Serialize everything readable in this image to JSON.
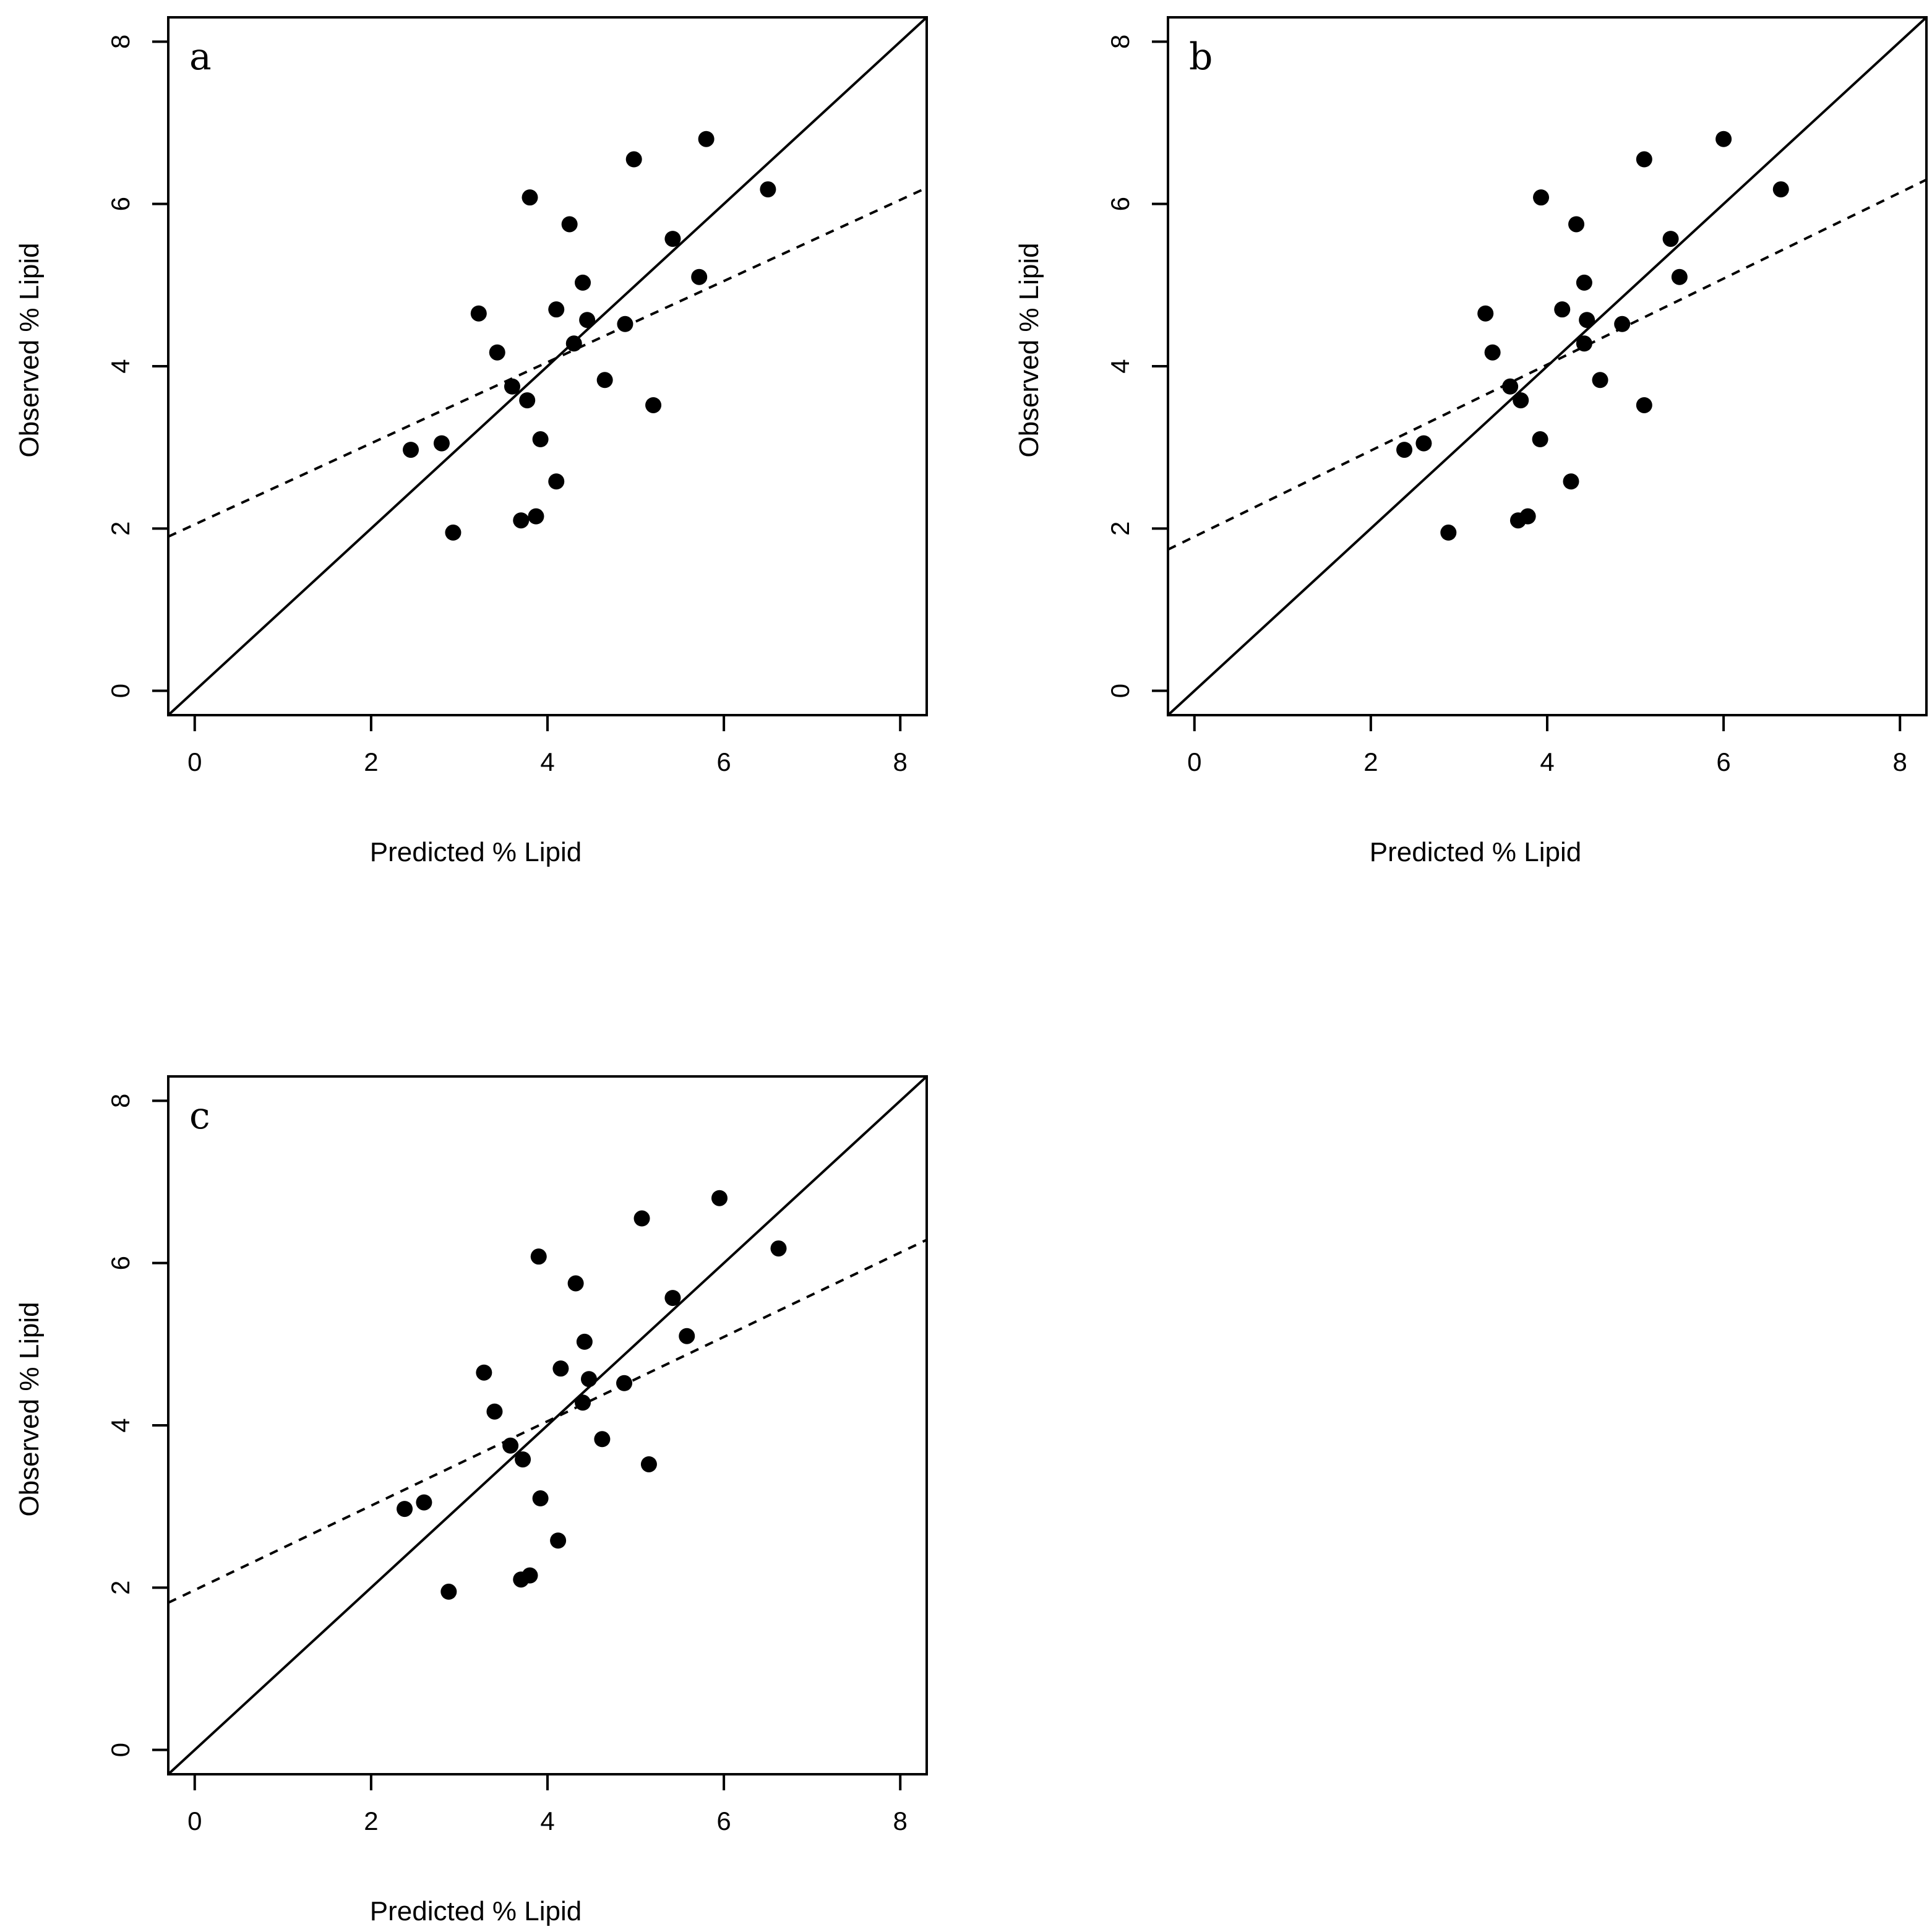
{
  "chart_data": [
    {
      "type": "scatter",
      "panel_label": "a",
      "xlabel": "Predicted % Lipid",
      "ylabel": "Observed % Lipid",
      "xlim": [
        -0.3,
        8.3
      ],
      "ylim": [
        -0.3,
        8.3
      ],
      "xticks": [
        "0",
        "2",
        "4",
        "6",
        "8"
      ],
      "yticks": [
        "0",
        "2",
        "4",
        "6",
        "8"
      ],
      "reference_line": {
        "style": "solid",
        "slope": 1,
        "intercept": 0
      },
      "fit_line": {
        "style": "dashed",
        "slope": 0.5,
        "intercept": 2.05
      },
      "x": [
        2.45,
        2.8,
        2.93,
        3.22,
        3.43,
        3.6,
        3.77,
        3.8,
        3.7,
        3.87,
        3.92,
        4.1,
        4.1,
        4.25,
        4.3,
        4.4,
        4.45,
        4.65,
        4.88,
        4.98,
        5.2,
        5.42,
        5.72,
        5.8,
        6.5
      ],
      "y": [
        2.97,
        3.05,
        1.95,
        4.65,
        4.17,
        3.75,
        3.58,
        6.08,
        2.1,
        2.15,
        3.1,
        2.58,
        4.7,
        5.75,
        4.28,
        5.03,
        4.57,
        3.83,
        4.52,
        6.55,
        3.52,
        5.57,
        5.1,
        6.8,
        6.18
      ]
    },
    {
      "type": "scatter",
      "panel_label": "b",
      "xlabel": "Predicted % Lipid",
      "ylabel": "Observed % Lipid",
      "xlim": [
        -0.3,
        8.3
      ],
      "ylim": [
        -0.3,
        8.3
      ],
      "xticks": [
        "0",
        "2",
        "4",
        "6",
        "8"
      ],
      "yticks": [
        "0",
        "2",
        "4",
        "6",
        "8"
      ],
      "reference_line": {
        "style": "solid",
        "slope": 1,
        "intercept": 0
      },
      "fit_line": {
        "style": "dashed",
        "slope": 0.53,
        "intercept": 1.9
      },
      "x": [
        2.38,
        2.6,
        2.88,
        3.3,
        3.38,
        3.58,
        3.7,
        3.93,
        3.67,
        3.78,
        3.92,
        4.27,
        4.17,
        4.33,
        4.42,
        4.42,
        4.45,
        4.6,
        4.85,
        5.1,
        5.1,
        5.4,
        5.5,
        6.0,
        6.65
      ],
      "y": [
        2.97,
        3.05,
        1.95,
        4.65,
        4.17,
        3.75,
        3.58,
        6.08,
        2.1,
        2.15,
        3.1,
        2.58,
        4.7,
        5.75,
        4.28,
        5.03,
        4.57,
        3.83,
        4.52,
        6.55,
        3.52,
        5.57,
        5.1,
        6.8,
        6.18
      ]
    },
    {
      "type": "scatter",
      "panel_label": "c",
      "xlabel": "Predicted % Lipid",
      "ylabel": "Observed % Lipid",
      "xlim": [
        -0.3,
        8.3
      ],
      "ylim": [
        -0.3,
        8.3
      ],
      "xticks": [
        "0",
        "2",
        "4",
        "6",
        "8"
      ],
      "yticks": [
        "0",
        "2",
        "4",
        "6",
        "8"
      ],
      "reference_line": {
        "style": "solid",
        "slope": 1,
        "intercept": 0
      },
      "fit_line": {
        "style": "dashed",
        "slope": 0.52,
        "intercept": 1.97
      },
      "x": [
        2.38,
        2.6,
        2.88,
        3.28,
        3.4,
        3.58,
        3.72,
        3.9,
        3.7,
        3.8,
        3.92,
        4.12,
        4.15,
        4.32,
        4.4,
        4.42,
        4.47,
        4.62,
        4.87,
        5.07,
        5.15,
        5.42,
        5.58,
        5.95,
        6.62
      ],
      "y": [
        2.97,
        3.05,
        1.95,
        4.65,
        4.17,
        3.75,
        3.58,
        6.08,
        2.1,
        2.15,
        3.1,
        2.58,
        4.7,
        5.75,
        4.28,
        5.03,
        4.57,
        3.83,
        4.52,
        6.55,
        3.52,
        5.57,
        5.1,
        6.8,
        6.18
      ]
    }
  ]
}
